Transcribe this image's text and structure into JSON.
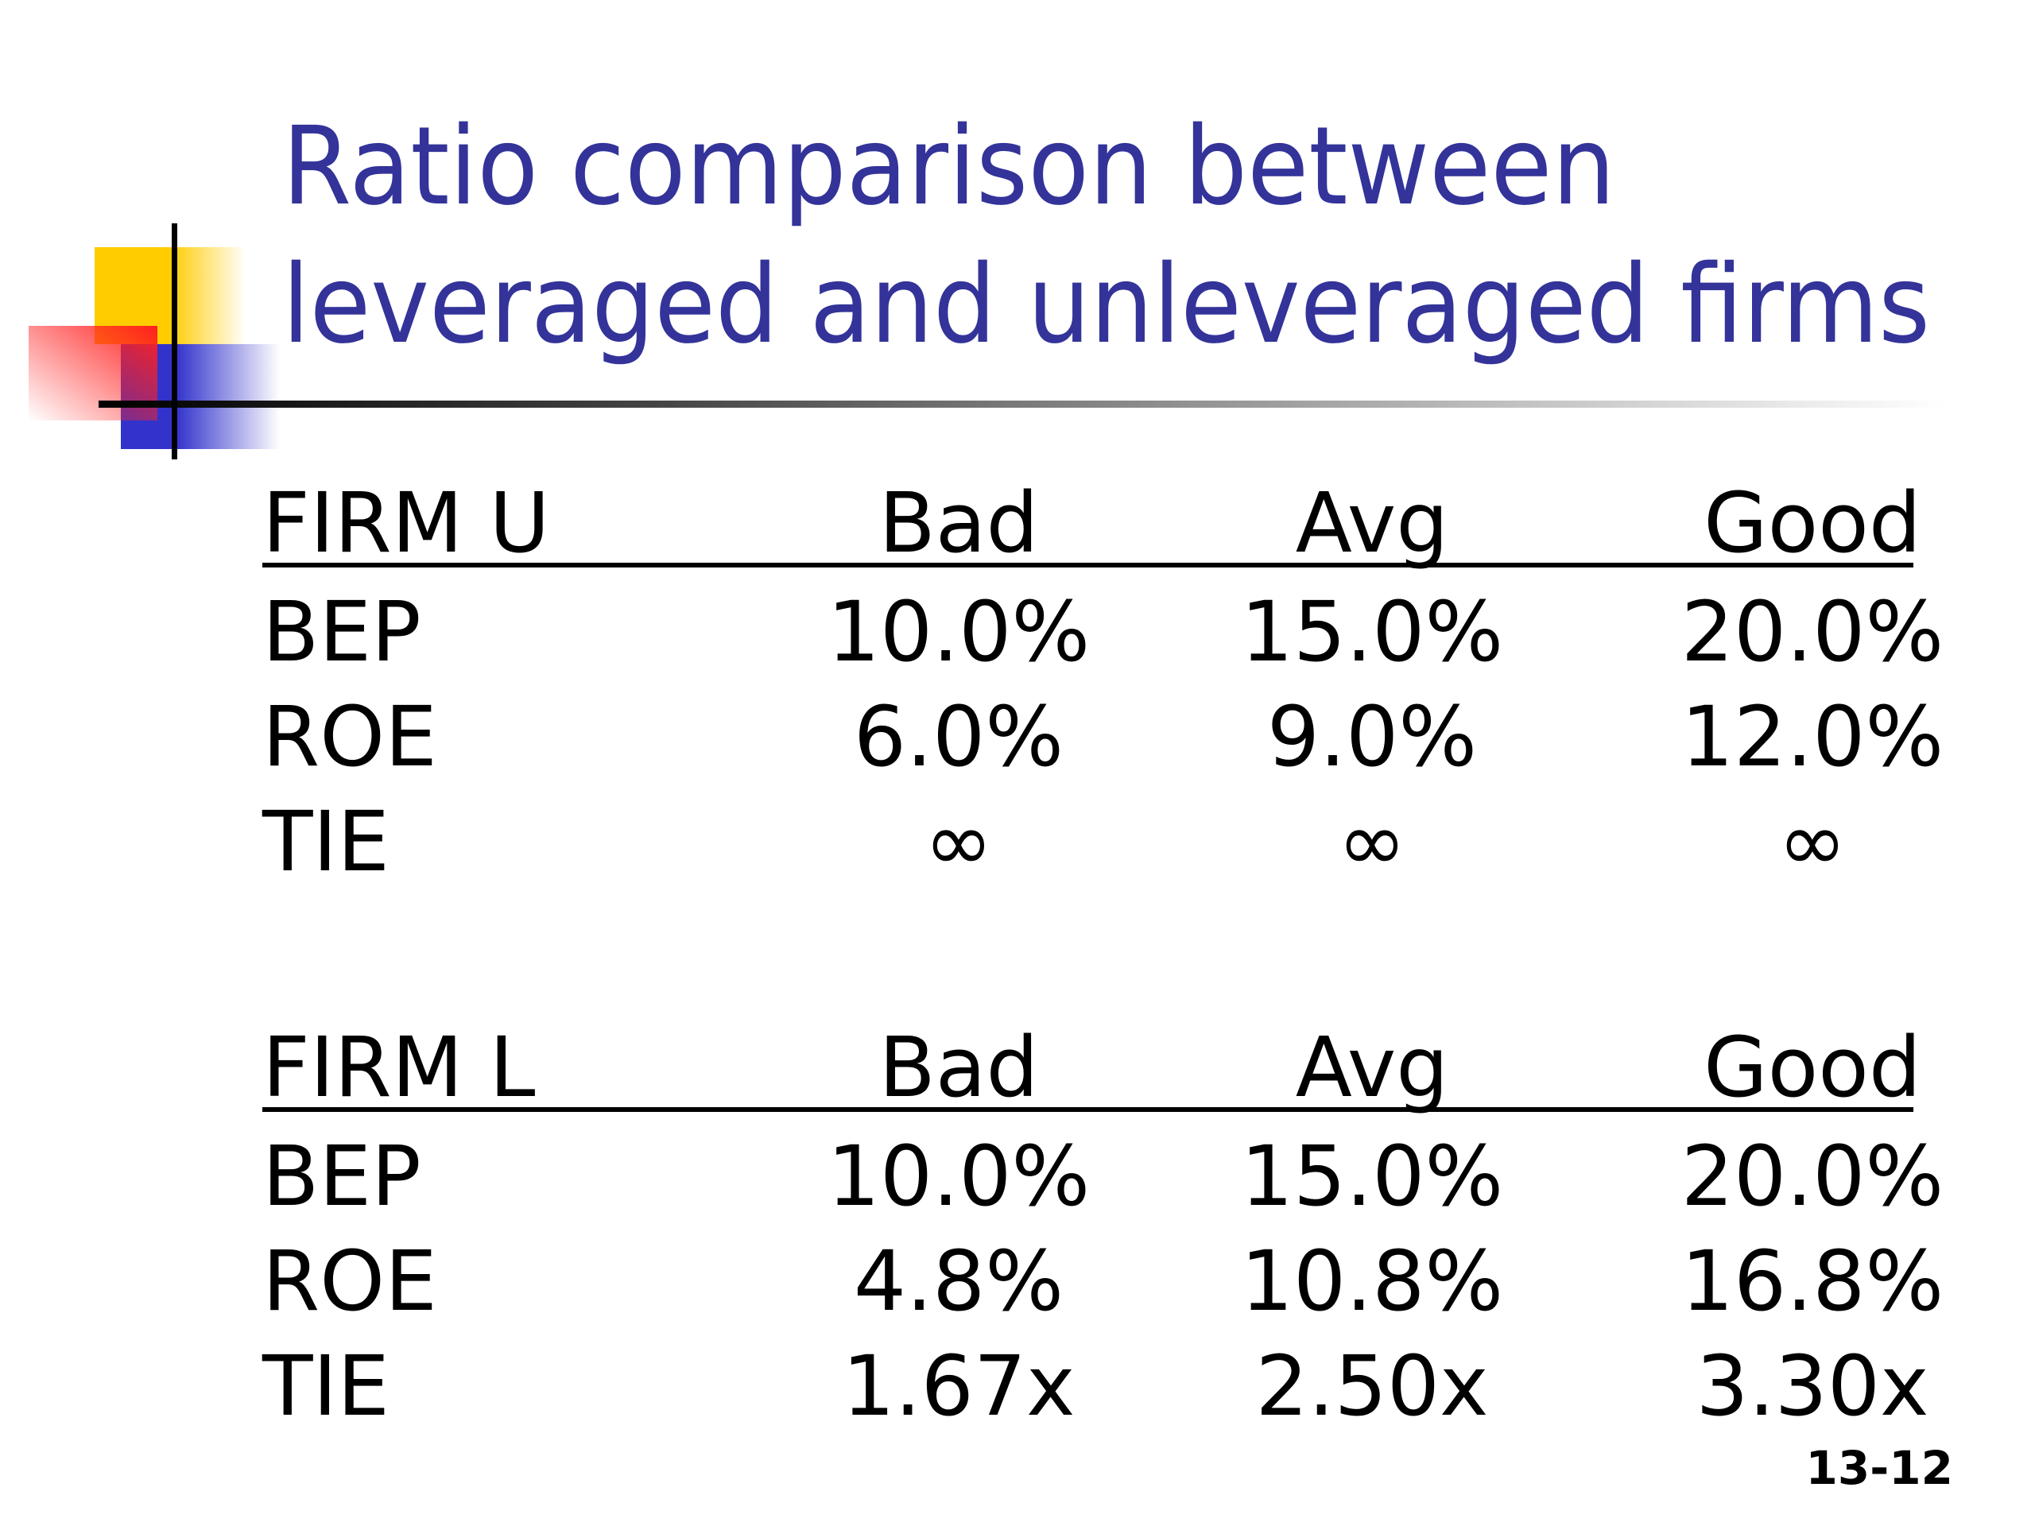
{
  "header": {
    "title_lines": [
      "Ratio comparison between",
      "leveraged and unleveraged firms"
    ]
  },
  "tables": [
    {
      "header": [
        "FIRM U",
        "Bad",
        "Avg",
        "Good"
      ],
      "rows": [
        [
          "BEP",
          "10.0%",
          "15.0%",
          "20.0%"
        ],
        [
          "ROE",
          "6.0%",
          "9.0%",
          "12.0%"
        ],
        [
          "TIE",
          "∞",
          "∞",
          "∞"
        ]
      ]
    },
    {
      "header": [
        "FIRM L",
        "Bad",
        "Avg",
        "Good"
      ],
      "rows": [
        [
          "BEP",
          "10.0%",
          "15.0%",
          "20.0%"
        ],
        [
          "ROE",
          "4.8%",
          "10.8%",
          "16.8%"
        ],
        [
          "TIE",
          "1.67x",
          "2.50x",
          "3.30x"
        ]
      ]
    }
  ],
  "footer": {
    "slide_number": "13-12"
  }
}
